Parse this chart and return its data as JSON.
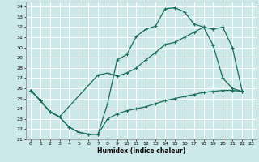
{
  "xlabel": "Humidex (Indice chaleur)",
  "bg_color": "#cce8e8",
  "grid_color": "#ffffff",
  "line_color": "#1a6b5a",
  "xlim": [
    -0.5,
    23.5
  ],
  "ylim": [
    21,
    34.5
  ],
  "yticks": [
    21,
    22,
    23,
    24,
    25,
    26,
    27,
    28,
    29,
    30,
    31,
    32,
    33,
    34
  ],
  "xticks": [
    0,
    1,
    2,
    3,
    4,
    5,
    6,
    7,
    8,
    9,
    10,
    11,
    12,
    13,
    14,
    15,
    16,
    17,
    18,
    19,
    20,
    21,
    22,
    23
  ],
  "line1_x": [
    0,
    1,
    2,
    3,
    4,
    5,
    6,
    7,
    8,
    9,
    10,
    11,
    12,
    13,
    14,
    15,
    16,
    17,
    18,
    19,
    20,
    21,
    22
  ],
  "line1_y": [
    25.8,
    24.8,
    23.7,
    23.2,
    22.2,
    21.7,
    21.5,
    21.5,
    24.5,
    28.8,
    29.3,
    31.1,
    31.8,
    32.1,
    33.8,
    33.9,
    33.5,
    32.3,
    32.0,
    30.2,
    27.0,
    26.0,
    25.7
  ],
  "line2_x": [
    0,
    1,
    2,
    3,
    7,
    8,
    9,
    10,
    11,
    12,
    13,
    14,
    15,
    16,
    17,
    18,
    19,
    20,
    21,
    22
  ],
  "line2_y": [
    25.8,
    24.8,
    23.7,
    23.2,
    27.3,
    27.5,
    27.2,
    27.5,
    28.0,
    28.8,
    29.5,
    30.3,
    30.5,
    31.0,
    31.5,
    32.0,
    31.8,
    32.0,
    30.0,
    25.8
  ],
  "line3_x": [
    0,
    1,
    2,
    3,
    4,
    5,
    6,
    7,
    8,
    9,
    10,
    11,
    12,
    13,
    14,
    15,
    16,
    17,
    18,
    19,
    20,
    21,
    22
  ],
  "line3_y": [
    25.8,
    24.8,
    23.7,
    23.2,
    22.2,
    21.7,
    21.5,
    21.5,
    23.0,
    23.5,
    23.8,
    24.0,
    24.2,
    24.5,
    24.8,
    25.0,
    25.2,
    25.4,
    25.6,
    25.7,
    25.8,
    25.8,
    25.7
  ]
}
